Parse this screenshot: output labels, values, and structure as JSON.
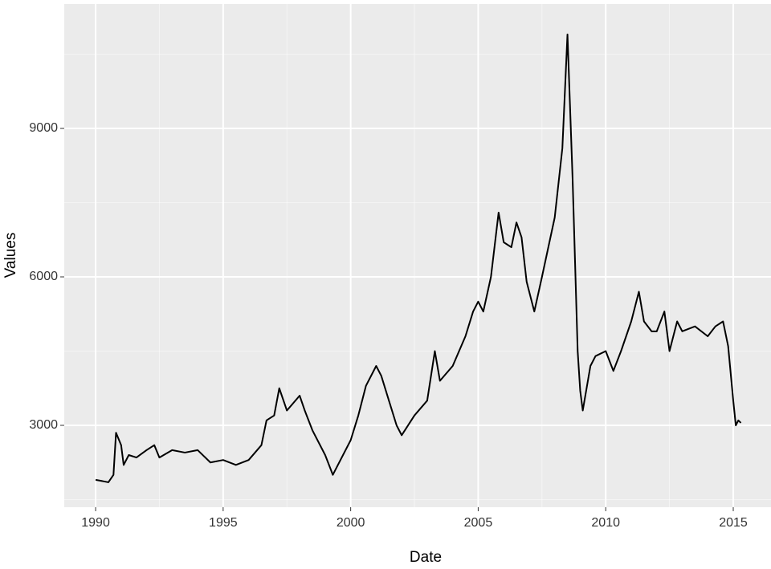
{
  "chart_data": {
    "type": "line",
    "x_label": "Date",
    "y_label": "Values",
    "x": [
      1990.0,
      1990.5,
      1990.7,
      1990.8,
      1991.0,
      1991.1,
      1991.3,
      1991.6,
      1992.0,
      1992.3,
      1992.5,
      1993.0,
      1993.5,
      1994.0,
      1994.5,
      1995.0,
      1995.5,
      1996.0,
      1996.5,
      1996.7,
      1997.0,
      1997.2,
      1997.5,
      1998.0,
      1998.2,
      1998.5,
      1999.0,
      1999.3,
      1999.5,
      2000.0,
      2000.3,
      2000.6,
      2001.0,
      2001.2,
      2001.5,
      2001.8,
      2002.0,
      2002.5,
      2003.0,
      2003.3,
      2003.5,
      2004.0,
      2004.5,
      2004.8,
      2005.0,
      2005.2,
      2005.5,
      2005.8,
      2006.0,
      2006.3,
      2006.5,
      2006.7,
      2006.9,
      2007.2,
      2007.5,
      2008.0,
      2008.3,
      2008.5,
      2008.7,
      2008.9,
      2009.0,
      2009.1,
      2009.4,
      2009.6,
      2010.0,
      2010.3,
      2010.6,
      2011.0,
      2011.3,
      2011.5,
      2011.8,
      2012.0,
      2012.3,
      2012.5,
      2012.8,
      2013.0,
      2013.5,
      2014.0,
      2014.3,
      2014.6,
      2014.8,
      2015.0,
      2015.1,
      2015.2,
      2015.3
    ],
    "series": [
      {
        "color": "#000000",
        "values": [
          1900,
          1850,
          2000,
          2850,
          2600,
          2200,
          2400,
          2350,
          2500,
          2600,
          2350,
          2500,
          2450,
          2500,
          2250,
          2300,
          2200,
          2300,
          2600,
          3100,
          3200,
          3750,
          3300,
          3600,
          3300,
          2900,
          2400,
          2000,
          2200,
          2700,
          3200,
          3800,
          4200,
          4000,
          3500,
          3000,
          2800,
          3200,
          3500,
          4500,
          3900,
          4200,
          4800,
          5300,
          5500,
          5300,
          6000,
          7300,
          6700,
          6600,
          7100,
          6800,
          5900,
          5300,
          6000,
          7200,
          8600,
          10900,
          8000,
          4500,
          3700,
          3300,
          4200,
          4400,
          4500,
          4100,
          4500,
          5100,
          5700,
          5100,
          4900,
          4900,
          5300,
          4500,
          5100,
          4900,
          5000,
          4800,
          5000,
          5100,
          4600,
          3500,
          3000,
          3100,
          3050
        ]
      }
    ],
    "xlim": [
      1988.77,
      2016.48
    ],
    "ylim": [
      1346,
      11514
    ],
    "xticks": [
      1990,
      1995,
      2000,
      2005,
      2010,
      2015
    ],
    "yticks": [
      3000,
      6000,
      9000
    ],
    "x_minor_grid": [
      1992.5,
      1997.5,
      2002.5,
      2007.5,
      2012.5
    ],
    "y_minor_grid": [
      1500,
      4500,
      7500,
      10500
    ],
    "panel_color": "#ebebeb",
    "grid": true
  }
}
